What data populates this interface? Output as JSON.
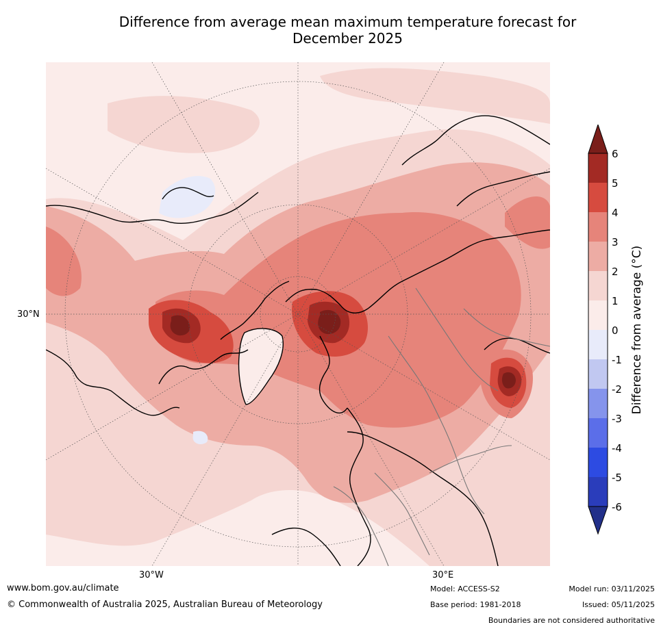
{
  "title": {
    "line1": "Difference from average mean maximum temperature forecast for",
    "line2": "December 2025"
  },
  "map": {
    "projection": "polar-stereographic",
    "labels": {
      "lon_west": "30°W",
      "lon_east": "30°E",
      "lat_north": "30°N"
    }
  },
  "legend": {
    "title": "Difference from average (°C)",
    "ticks": [
      "6",
      "5",
      "4",
      "3",
      "2",
      "1",
      "0",
      "-1",
      "-2",
      "-3",
      "-4",
      "-5",
      "-6"
    ],
    "colors": {
      "over": "#7a1e1a",
      "c5_6": "#a32a24",
      "c4_5": "#d64b3f",
      "c3_4": "#e6847a",
      "c2_3": "#edaca4",
      "c1_2": "#f5d6d2",
      "c0_1": "#fbecea",
      "cm1_0": "#e8ebfa",
      "cm2_m1": "#c1c8f1",
      "cm3_m2": "#8594ec",
      "cm4_m3": "#5b6ee9",
      "cm5_m4": "#2d4be2",
      "cm6_m5": "#2a3dbb",
      "under": "#22308a"
    }
  },
  "footer": {
    "url": "www.bom.gov.au/climate",
    "copyright": "© Commonwealth of Australia 2025, Australian Bureau of Meteorology",
    "model": "Model: ACCESS-S2",
    "base_period": "Base period: 1981-2018",
    "model_run": "Model run: 03/11/2025",
    "issued": "Issued: 05/11/2025",
    "disclaimer": "Boundaries are not considered authoritative"
  }
}
